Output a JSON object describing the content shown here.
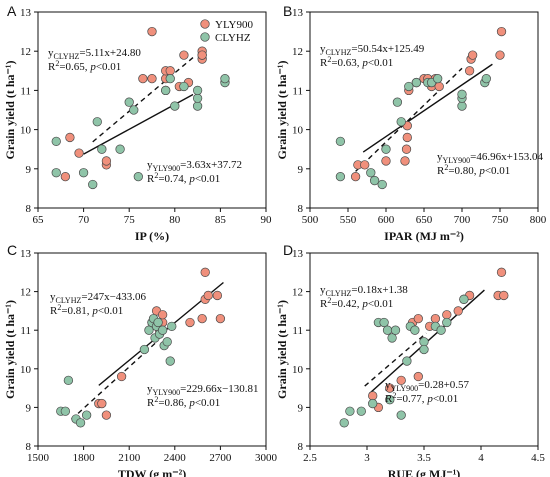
{
  "colors": {
    "YLY900": "#f0907c",
    "CLYHZ": "#8fc4a8",
    "marker_edge": "#4a4a4a"
  },
  "legend": {
    "placement": "top-right of panel A",
    "items": [
      "YLY900",
      "CLYHZ"
    ]
  },
  "chart_data": [
    {
      "type": "scatter",
      "panel_label": "A",
      "xlabel": "IP (%)",
      "ylabel": "Grain yield (t ha⁻¹)",
      "xlim": [
        65,
        90
      ],
      "ylim": [
        8,
        13
      ],
      "xticks": [
        65,
        70,
        75,
        80,
        85,
        90
      ],
      "yticks": [
        8,
        9,
        10,
        11,
        12,
        13
      ],
      "series": [
        {
          "name": "YLY900",
          "points": [
            [
              68.0,
              8.8
            ],
            [
              68.5,
              9.8
            ],
            [
              69.5,
              9.4
            ],
            [
              72.5,
              9.1
            ],
            [
              72.5,
              9.2
            ],
            [
              76.5,
              11.3
            ],
            [
              77.5,
              11.3
            ],
            [
              77.5,
              12.5
            ],
            [
              79.0,
              11.0
            ],
            [
              79.0,
              11.3
            ],
            [
              79.0,
              11.5
            ],
            [
              79.5,
              11.5
            ],
            [
              80.5,
              11.1
            ],
            [
              81.0,
              11.9
            ],
            [
              81.5,
              11.2
            ],
            [
              83.0,
              11.8
            ],
            [
              83.0,
              11.9
            ],
            [
              83.0,
              12.0
            ],
            [
              83.0,
              11.9
            ]
          ]
        },
        {
          "name": "CLYHZ",
          "points": [
            [
              67.0,
              8.9
            ],
            [
              67.0,
              9.7
            ],
            [
              70.0,
              8.9
            ],
            [
              71.0,
              8.6
            ],
            [
              71.5,
              10.2
            ],
            [
              72.0,
              9.5
            ],
            [
              74.0,
              9.5
            ],
            [
              75.0,
              10.7
            ],
            [
              75.5,
              10.5
            ],
            [
              76.0,
              8.8
            ],
            [
              79.0,
              11.0
            ],
            [
              79.5,
              11.3
            ],
            [
              80.0,
              10.6
            ],
            [
              81.0,
              11.1
            ],
            [
              82.5,
              10.6
            ],
            [
              82.5,
              10.8
            ],
            [
              82.5,
              11.0
            ],
            [
              85.5,
              11.2
            ],
            [
              85.5,
              11.3
            ]
          ]
        }
      ],
      "fits": [
        {
          "series": "CLYHZ",
          "style": "solid",
          "x_range": [
            70,
            82
          ]
        },
        {
          "series": "YLY900",
          "style": "dashed",
          "x_range": [
            71,
            82
          ]
        }
      ],
      "annotations": [
        {
          "sub": "CLYHZ",
          "eq": "=5.11x+24.80",
          "r2": "=0.65,",
          "p": "p",
          "pval": "<0.01"
        },
        {
          "sub": "YLY900",
          "eq": "=3.63x+37.72",
          "r2": "=0.74,",
          "p": "p",
          "pval": "<0.01"
        }
      ]
    },
    {
      "type": "scatter",
      "panel_label": "B",
      "xlabel": "IPAR (MJ m⁻²)",
      "ylabel": "Grain yield (t ha⁻¹)",
      "xlim": [
        500,
        800
      ],
      "ylim": [
        8,
        13
      ],
      "xticks": [
        500,
        550,
        600,
        650,
        700,
        750,
        800
      ],
      "yticks": [
        8,
        9,
        10,
        11,
        12,
        13
      ],
      "series": [
        {
          "name": "YLY900",
          "points": [
            [
              560,
              8.8
            ],
            [
              563,
              9.1
            ],
            [
              572,
              9.1
            ],
            [
              600,
              9.2
            ],
            [
              625,
              9.2
            ],
            [
              627,
              9.5
            ],
            [
              628,
              9.8
            ],
            [
              628,
              10.1
            ],
            [
              630,
              11.0
            ],
            [
              640,
              11.2
            ],
            [
              650,
              11.3
            ],
            [
              655,
              11.3
            ],
            [
              660,
              11.1
            ],
            [
              665,
              11.3
            ],
            [
              670,
              11.1
            ],
            [
              710,
              11.5
            ],
            [
              712,
              11.8
            ],
            [
              714,
              11.9
            ],
            [
              750,
              11.9
            ],
            [
              752,
              12.5
            ]
          ]
        },
        {
          "name": "CLYHZ",
          "points": [
            [
              540,
              9.7
            ],
            [
              540,
              8.8
            ],
            [
              580,
              8.9
            ],
            [
              585,
              8.7
            ],
            [
              595,
              8.6
            ],
            [
              600,
              9.5
            ],
            [
              615,
              10.7
            ],
            [
              620,
              10.2
            ],
            [
              630,
              11.1
            ],
            [
              640,
              11.2
            ],
            [
              655,
              11.2
            ],
            [
              660,
              11.2
            ],
            [
              668,
              11.3
            ],
            [
              700,
              10.6
            ],
            [
              700,
              10.8
            ],
            [
              700,
              10.9
            ],
            [
              730,
              11.2
            ],
            [
              732,
              11.3
            ]
          ]
        }
      ],
      "fits": [
        {
          "series": "CLYHZ",
          "style": "solid",
          "x_range": [
            570,
            740
          ]
        },
        {
          "series": "YLY900",
          "style": "dashed",
          "x_range": [
            560,
            700
          ]
        }
      ],
      "annotations": [
        {
          "sub": "CLYHZ",
          "eq": "=50.54x+125.49",
          "r2": "=0.63,",
          "p": "p",
          "pval": "<0.01"
        },
        {
          "sub": "YLY900",
          "eq": "=46.96x+153.04",
          "r2": "=0.80,",
          "p": "p",
          "pval": "<0.01"
        }
      ]
    },
    {
      "type": "scatter",
      "panel_label": "C",
      "xlabel": "TDW (g m⁻²)",
      "ylabel": "Grain yield (t ha⁻¹)",
      "xlim": [
        1500,
        3000
      ],
      "ylim": [
        8,
        13
      ],
      "xticks": [
        1500,
        1800,
        2100,
        2400,
        2700,
        3000
      ],
      "yticks": [
        8,
        9,
        10,
        11,
        12,
        13
      ],
      "series": [
        {
          "name": "YLY900",
          "points": [
            [
              1900,
              9.1
            ],
            [
              1920,
              9.1
            ],
            [
              1950,
              8.8
            ],
            [
              2050,
              9.8
            ],
            [
              2250,
              11.2
            ],
            [
              2280,
              11.5
            ],
            [
              2300,
              11.0
            ],
            [
              2320,
              11.2
            ],
            [
              2320,
              11.4
            ],
            [
              2500,
              11.2
            ],
            [
              2580,
              11.3
            ],
            [
              2600,
              11.8
            ],
            [
              2600,
              12.5
            ],
            [
              2620,
              11.9
            ],
            [
              2680,
              11.9
            ],
            [
              2700,
              11.3
            ]
          ]
        },
        {
          "name": "CLYHZ",
          "points": [
            [
              1650,
              8.9
            ],
            [
              1680,
              8.9
            ],
            [
              1700,
              9.7
            ],
            [
              1750,
              8.7
            ],
            [
              1780,
              8.6
            ],
            [
              1820,
              8.8
            ],
            [
              2200,
              10.5
            ],
            [
              2230,
              11.0
            ],
            [
              2250,
              11.2
            ],
            [
              2260,
              11.3
            ],
            [
              2270,
              10.8
            ],
            [
              2280,
              11.1
            ],
            [
              2290,
              11.2
            ],
            [
              2300,
              10.9
            ],
            [
              2320,
              11.0
            ],
            [
              2330,
              10.6
            ],
            [
              2350,
              10.7
            ],
            [
              2370,
              10.2
            ],
            [
              2380,
              11.1
            ]
          ]
        }
      ],
      "fits": [
        {
          "series": "CLYHZ",
          "style": "solid",
          "x_range": [
            1900,
            2720
          ]
        },
        {
          "series": "YLY900",
          "style": "dashed",
          "x_range": [
            1720,
            2280
          ]
        }
      ],
      "annotations": [
        {
          "sub": "CLYHZ",
          "eq": "=247x−433.06",
          "r2": "=0.81,",
          "p": "p",
          "pval": "<0.01"
        },
        {
          "sub": "YLY900",
          "eq": "=229.66x−130.81",
          "r2": "=0.86,",
          "p": "p",
          "pval": "<0.01"
        }
      ]
    },
    {
      "type": "scatter",
      "panel_label": "D",
      "xlabel": "RUE (g MJ⁻¹)",
      "ylabel": "Grain yield (t ha⁻¹)",
      "xlim": [
        2.5,
        4.5
      ],
      "ylim": [
        8,
        13
      ],
      "xticks": [
        2.5,
        3.0,
        3.5,
        4.0,
        4.5
      ],
      "yticks": [
        8,
        9,
        10,
        11,
        12,
        13
      ],
      "series": [
        {
          "name": "YLY900",
          "points": [
            [
              3.05,
              9.3
            ],
            [
              3.1,
              9.0
            ],
            [
              3.2,
              9.5
            ],
            [
              3.3,
              9.7
            ],
            [
              3.4,
              11.2
            ],
            [
              3.45,
              11.3
            ],
            [
              3.45,
              9.8
            ],
            [
              3.55,
              11.1
            ],
            [
              3.6,
              11.3
            ],
            [
              3.7,
              11.4
            ],
            [
              3.8,
              11.5
            ],
            [
              3.85,
              11.8
            ],
            [
              3.9,
              11.9
            ],
            [
              4.15,
              11.9
            ],
            [
              4.18,
              12.5
            ],
            [
              4.2,
              11.9
            ]
          ]
        },
        {
          "name": "CLYHZ",
          "points": [
            [
              2.8,
              8.6
            ],
            [
              2.85,
              8.9
            ],
            [
              2.95,
              8.9
            ],
            [
              3.05,
              9.1
            ],
            [
              3.1,
              11.2
            ],
            [
              3.15,
              11.2
            ],
            [
              3.18,
              11.0
            ],
            [
              3.2,
              9.2
            ],
            [
              3.22,
              10.8
            ],
            [
              3.25,
              11.0
            ],
            [
              3.3,
              8.8
            ],
            [
              3.35,
              10.2
            ],
            [
              3.38,
              11.1
            ],
            [
              3.42,
              11.0
            ],
            [
              3.5,
              10.7
            ],
            [
              3.5,
              10.5
            ],
            [
              3.6,
              11.1
            ],
            [
              3.65,
              11.0
            ],
            [
              3.7,
              11.2
            ],
            [
              3.85,
              11.8
            ]
          ]
        }
      ],
      "fits": [
        {
          "series": "CLYHZ",
          "style": "dashed",
          "x_range": [
            2.98,
            3.52
          ]
        },
        {
          "series": "YLY900",
          "style": "solid",
          "x_range": [
            3.02,
            4.03
          ]
        }
      ],
      "annotations": [
        {
          "sub": "CLYHZ",
          "eq": "=0.18x+1.38",
          "r2": "=0.42,",
          "p": "p",
          "pval": "<0.01"
        },
        {
          "sub": "YLY900",
          "eq": "=0.28+0.57",
          "r2": "=0.77,",
          "p": "p",
          "pval": "<0.01"
        }
      ]
    }
  ]
}
